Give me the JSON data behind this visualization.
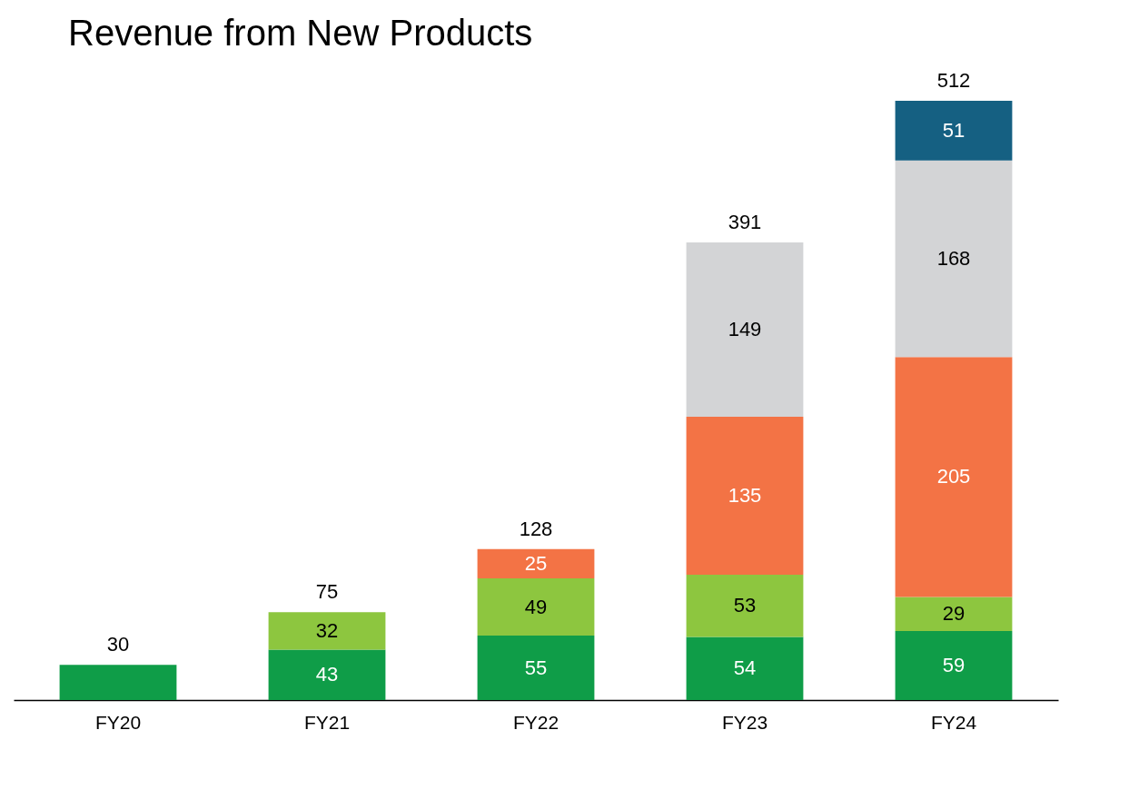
{
  "chart_data": {
    "type": "bar",
    "title": "Revenue from New Products",
    "stacked": true,
    "grid": false,
    "tick_labels": "x",
    "categories": [
      "FY20",
      "FY21",
      "FY22",
      "FY23",
      "FY24"
    ],
    "series": [
      {
        "color": "#0f9d48",
        "values": [
          30,
          43,
          55,
          54,
          59
        ],
        "value_labels": [
          null,
          "43",
          "55",
          "54",
          "59"
        ]
      },
      {
        "color": "#8dc63f",
        "values": [
          null,
          32,
          49,
          53,
          29
        ],
        "value_labels": [
          null,
          "32",
          "49",
          "53",
          "29"
        ]
      },
      {
        "color": "#f37345",
        "values": [
          null,
          null,
          25,
          135,
          205
        ],
        "value_labels": [
          null,
          null,
          "25",
          "135",
          "205"
        ]
      },
      {
        "color": "#d3d4d6",
        "values": [
          null,
          null,
          null,
          149,
          168
        ],
        "value_labels": [
          null,
          null,
          null,
          "149",
          "168"
        ]
      },
      {
        "color": "#156082",
        "values": [
          null,
          null,
          null,
          null,
          51
        ],
        "value_labels": [
          null,
          null,
          null,
          null,
          "51"
        ]
      }
    ],
    "totals": [
      "30",
      "75",
      "128",
      "391",
      "512"
    ]
  }
}
